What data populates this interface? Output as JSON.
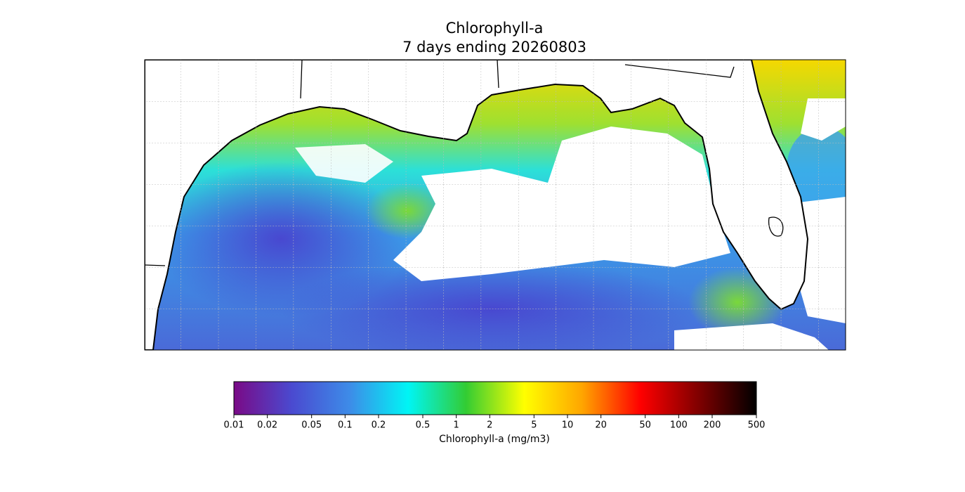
{
  "title": "Chlorophyll-a",
  "subtitle": "7 days ending 20260803",
  "colorbar": {
    "label": "Chlorophyll-a (mg/m3)",
    "scale": "log",
    "lim": [
      0.01,
      500
    ],
    "ticks": [
      0.01,
      0.02,
      0.05,
      0.1,
      0.2,
      0.5,
      1,
      2,
      5,
      10,
      20,
      50,
      100,
      200,
      500
    ],
    "colors": [
      "#7a0a86",
      "#4a4ad0",
      "#3d8ce8",
      "#00f5f5",
      "#33cc33",
      "#ffff00",
      "#ffa500",
      "#ff0000",
      "#800000",
      "#000000"
    ]
  }
}
